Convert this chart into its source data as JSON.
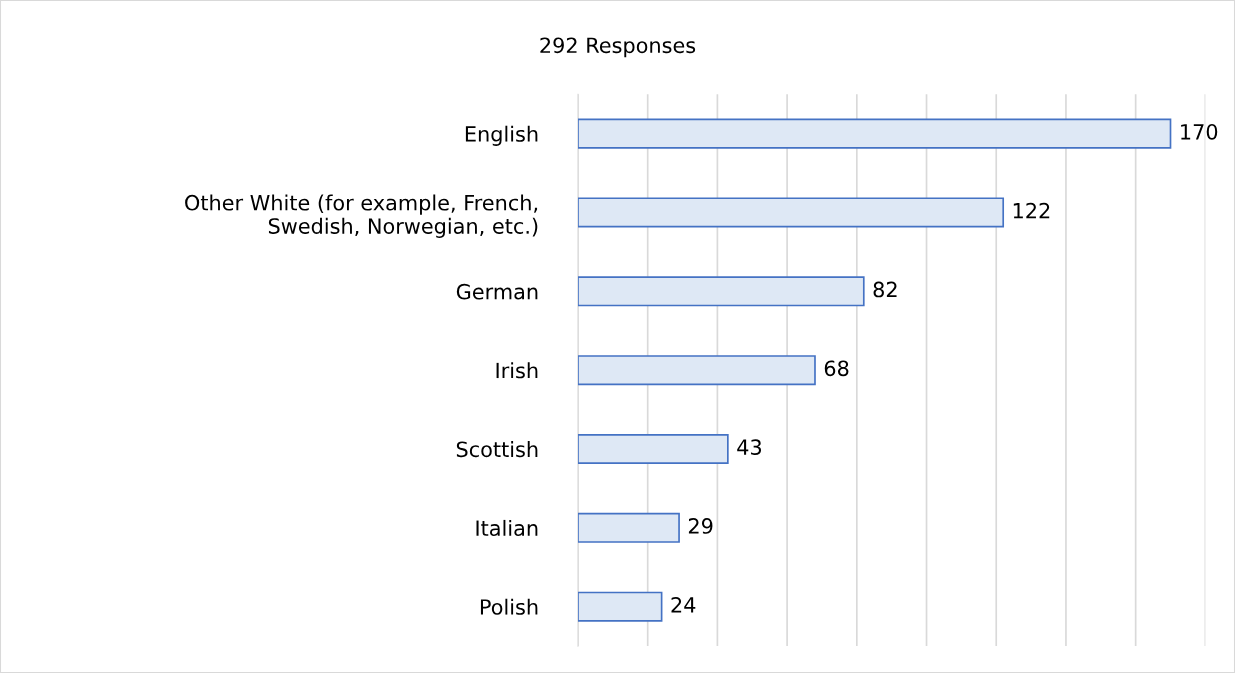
{
  "chart_data": {
    "type": "bar",
    "orientation": "horizontal",
    "title": "292 Responses",
    "categories": [
      "English",
      "Other White (for example, French,\nSwedish, Norwegian, etc.)",
      "German",
      "Irish",
      "Scottish",
      "Italian",
      "Polish"
    ],
    "values": [
      170,
      122,
      82,
      68,
      43,
      29,
      24
    ],
    "color": "#dee8f5",
    "xlim": [
      0,
      180
    ],
    "xticks": [
      {
        "value": 0,
        "label": null
      },
      {
        "value": 20,
        "label": null
      },
      {
        "value": 40,
        "label": null
      },
      {
        "value": 60,
        "label": null
      },
      {
        "value": 80,
        "label": null
      },
      {
        "value": 100,
        "label": null
      },
      {
        "value": 120,
        "label": null
      },
      {
        "value": 140,
        "label": null
      },
      {
        "value": 160,
        "label": null
      },
      {
        "value": 180,
        "label": null
      }
    ],
    "tick_labels": "y",
    "grid": "x",
    "data_labels": true
  }
}
